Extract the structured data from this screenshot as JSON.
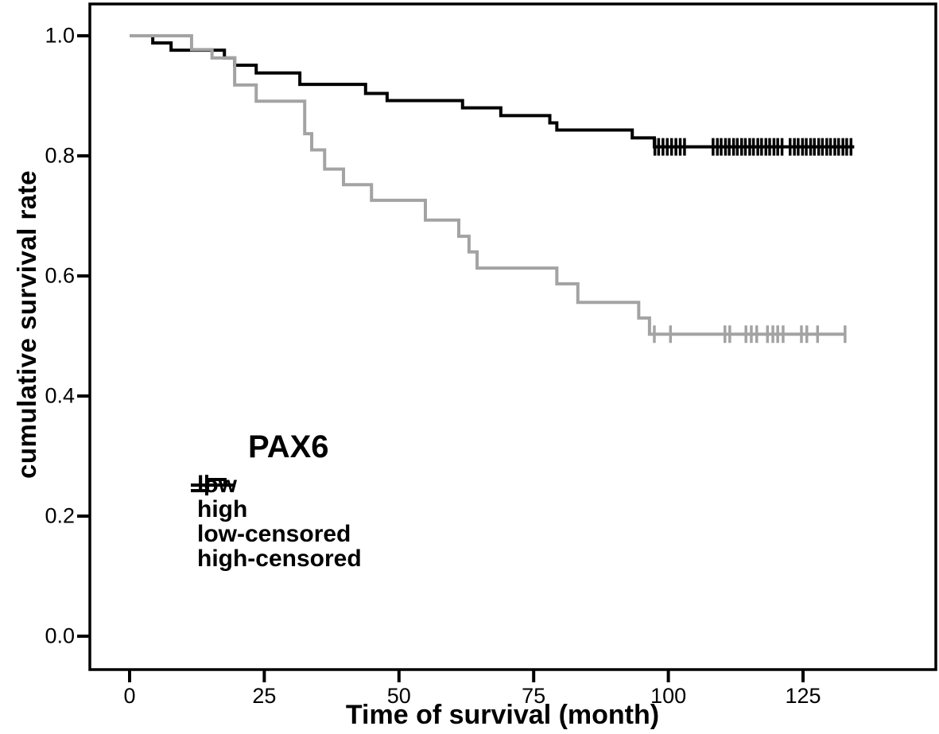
{
  "chart_data": {
    "type": "line",
    "subtype": "kaplan-meier-step",
    "title": "",
    "xlabel": "Time of survival (month)",
    "ylabel": "cumulative survival rate",
    "x_tick_labels": [
      "0",
      "25",
      "50",
      "75",
      "100",
      "125"
    ],
    "x_tick_values": [
      0,
      25,
      50,
      75,
      100,
      125
    ],
    "y_tick_labels": [
      "0.0",
      "0.2",
      "0.4",
      "0.6",
      "0.8",
      "1.0"
    ],
    "y_tick_values": [
      0.0,
      0.2,
      0.4,
      0.6,
      0.8,
      1.0
    ],
    "xlim": [
      -7.5,
      149.5
    ],
    "ylim": [
      -0.055,
      1.055
    ],
    "grid": false,
    "frame_color": "#000000",
    "background": "#ffffff",
    "legend": {
      "position": "inside-left-middle",
      "title": "PAX6",
      "entries": [
        {
          "label": "low",
          "color": "#000000",
          "glyph": "step"
        },
        {
          "label": "high",
          "color": "#a3a3a3",
          "glyph": "step"
        },
        {
          "label": "low-censored",
          "color": "#000000",
          "glyph": "censor"
        },
        {
          "label": "high-censored",
          "color": "#a3a3a3",
          "glyph": "censor"
        }
      ]
    },
    "series": [
      {
        "name": "low",
        "color": "#000000",
        "stroke_width": 4,
        "start_value": 1.0,
        "end_time": 134.5,
        "steps": [
          [
            4.3,
            0.988
          ],
          [
            7.7,
            0.976
          ],
          [
            17.6,
            0.963
          ],
          [
            19.5,
            0.951
          ],
          [
            23.5,
            0.938
          ],
          [
            31.6,
            0.919
          ],
          [
            43.8,
            0.904
          ],
          [
            47.8,
            0.892
          ],
          [
            61.8,
            0.88
          ],
          [
            68.9,
            0.867
          ],
          [
            78.0,
            0.855
          ],
          [
            79.3,
            0.843
          ],
          [
            93.3,
            0.83
          ],
          [
            97.4,
            0.815
          ]
        ],
        "censored_times": [
          97.5,
          98.2,
          99.0,
          99.8,
          100.6,
          101.4,
          102.2,
          103.0,
          108.3,
          109.1,
          109.8,
          110.6,
          111.3,
          112.1,
          112.8,
          113.6,
          114.3,
          115.1,
          115.8,
          116.6,
          117.3,
          118.1,
          118.8,
          119.6,
          120.3,
          121.1,
          122.6,
          123.4,
          124.1,
          124.9,
          125.6,
          126.4,
          127.1,
          127.9,
          128.6,
          129.4,
          130.1,
          130.9,
          131.6,
          132.4,
          133.1,
          133.9
        ]
      },
      {
        "name": "high",
        "color": "#a3a3a3",
        "stroke_width": 4,
        "start_value": 1.0,
        "end_time": 133.0,
        "steps": [
          [
            11.5,
            0.977
          ],
          [
            15.3,
            0.963
          ],
          [
            19.5,
            0.918
          ],
          [
            23.5,
            0.891
          ],
          [
            32.5,
            0.837
          ],
          [
            33.8,
            0.81
          ],
          [
            36.2,
            0.778
          ],
          [
            39.7,
            0.752
          ],
          [
            44.9,
            0.726
          ],
          [
            54.9,
            0.693
          ],
          [
            61.1,
            0.666
          ],
          [
            63.0,
            0.64
          ],
          [
            64.5,
            0.613
          ],
          [
            79.3,
            0.587
          ],
          [
            83.2,
            0.556
          ],
          [
            94.5,
            0.53
          ],
          [
            96.5,
            0.503
          ]
        ],
        "censored_times": [
          97.4,
          100.4,
          110.5,
          111.4,
          114.4,
          115.4,
          116.4,
          118.4,
          119.4,
          120.3,
          121.3,
          124.7,
          125.7,
          127.7,
          132.8
        ]
      }
    ]
  }
}
